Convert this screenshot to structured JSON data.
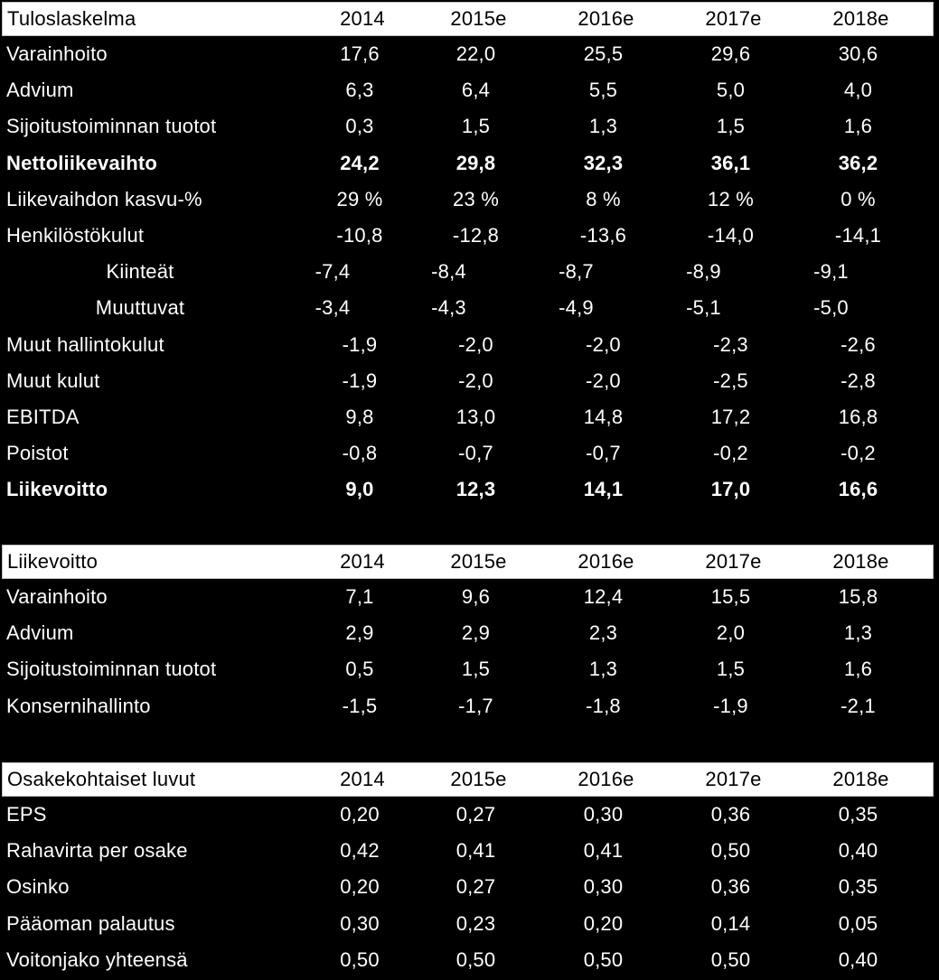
{
  "columns": [
    "2014",
    "2015e",
    "2016e",
    "2017e",
    "2018e"
  ],
  "colors": {
    "background": "#000000",
    "text": "#ffffff",
    "header_bg": "#ffffff",
    "header_text": "#000000"
  },
  "tables": [
    {
      "title": "Tuloslaskelma",
      "rows": [
        {
          "label": "Varainhoito",
          "values": [
            "17,6",
            "22,0",
            "25,5",
            "29,6",
            "30,6"
          ]
        },
        {
          "label": "Advium",
          "values": [
            "6,3",
            "6,4",
            "5,5",
            "5,0",
            "4,0"
          ]
        },
        {
          "label": "Sijoitustoiminnan tuotot",
          "values": [
            "0,3",
            "1,5",
            "1,3",
            "1,5",
            "1,6"
          ]
        },
        {
          "label": "Nettoliikevaihto",
          "values": [
            "24,2",
            "29,8",
            "32,3",
            "36,1",
            "36,2"
          ],
          "bold": true
        },
        {
          "label": "Liikevaihdon kasvu-%",
          "values": [
            "29 %",
            "23 %",
            "8 %",
            "12 %",
            "0 %"
          ]
        },
        {
          "label": "Henkilöstökulut",
          "values": [
            "-10,8",
            "-12,8",
            "-13,6",
            "-14,0",
            "-14,1"
          ]
        },
        {
          "label": "Kiinteät",
          "values": [
            "-7,4",
            "-8,4",
            "-8,7",
            "-8,9",
            "-9,1"
          ],
          "indent": true
        },
        {
          "label": "Muuttuvat",
          "values": [
            "-3,4",
            "-4,3",
            "-4,9",
            "-5,1",
            "-5,0"
          ],
          "indent": true
        },
        {
          "label": "Muut hallintokulut",
          "values": [
            "-1,9",
            "-2,0",
            "-2,0",
            "-2,3",
            "-2,6"
          ]
        },
        {
          "label": "Muut kulut",
          "values": [
            "-1,9",
            "-2,0",
            "-2,0",
            "-2,5",
            "-2,8"
          ]
        },
        {
          "label": "EBITDA",
          "values": [
            "9,8",
            "13,0",
            "14,8",
            "17,2",
            "16,8"
          ]
        },
        {
          "label": "Poistot",
          "values": [
            "-0,8",
            "-0,7",
            "-0,7",
            "-0,2",
            "-0,2"
          ]
        },
        {
          "label": "Liikevoitto",
          "values": [
            "9,0",
            "12,3",
            "14,1",
            "17,0",
            "16,6"
          ],
          "bold": true
        }
      ]
    },
    {
      "title": "Liikevoitto",
      "rows": [
        {
          "label": "Varainhoito",
          "values": [
            "7,1",
            "9,6",
            "12,4",
            "15,5",
            "15,8"
          ]
        },
        {
          "label": "Advium",
          "values": [
            "2,9",
            "2,9",
            "2,3",
            "2,0",
            "1,3"
          ]
        },
        {
          "label": "Sijoitustoiminnan tuotot",
          "values": [
            "0,5",
            "1,5",
            "1,3",
            "1,5",
            "1,6"
          ]
        },
        {
          "label": "Konsernihallinto",
          "values": [
            "-1,5",
            "-1,7",
            "-1,8",
            "-1,9",
            "-2,1"
          ]
        }
      ]
    },
    {
      "title": "Osakekohtaiset luvut",
      "rows": [
        {
          "label": "EPS",
          "values": [
            "0,20",
            "0,27",
            "0,30",
            "0,36",
            "0,35"
          ]
        },
        {
          "label": "Rahavirta per osake",
          "values": [
            "0,42",
            "0,41",
            "0,41",
            "0,50",
            "0,40"
          ]
        },
        {
          "label": "Osinko",
          "values": [
            "0,20",
            "0,27",
            "0,30",
            "0,36",
            "0,35"
          ]
        },
        {
          "label": "Pääoman palautus",
          "values": [
            "0,30",
            "0,23",
            "0,20",
            "0,14",
            "0,05"
          ]
        },
        {
          "label": "Voitonjako yhteensä",
          "values": [
            "0,50",
            "0,50",
            "0,50",
            "0,50",
            "0,40"
          ]
        }
      ]
    }
  ]
}
